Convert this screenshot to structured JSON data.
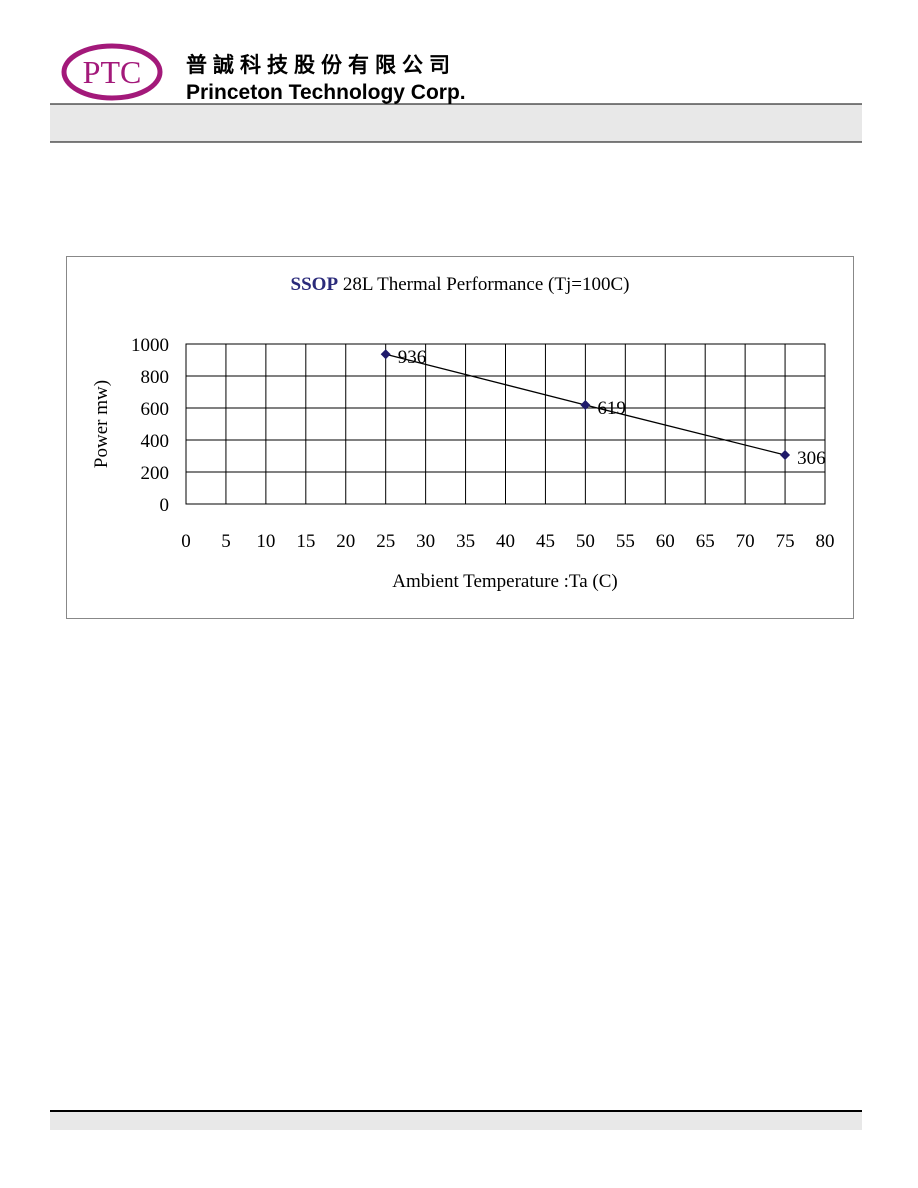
{
  "header": {
    "logo": "PTC",
    "company_cn": "普誠科技股份有限公司",
    "company_en": "Princeton Technology Corp."
  },
  "chart_data": {
    "type": "line",
    "title": [
      "SSOP",
      "28L Thermal Performance (Tj=100C)"
    ],
    "x_label": "Ambient Temperature :Ta (C)",
    "y_label": "Power mw)",
    "x": [
      25,
      50,
      75
    ],
    "series": [
      {
        "name": "SSOP 28L",
        "color": "#1f1a6b",
        "values": [
          936,
          619,
          306
        ]
      }
    ],
    "xlim": [
      0,
      80
    ],
    "xticks": [
      0,
      5,
      10,
      15,
      20,
      25,
      30,
      35,
      40,
      45,
      50,
      55,
      60,
      65,
      70,
      75,
      80
    ],
    "ylim": [
      0,
      1000
    ],
    "yticks": [
      0,
      200,
      400,
      600,
      800,
      1000
    ],
    "grid": true
  }
}
